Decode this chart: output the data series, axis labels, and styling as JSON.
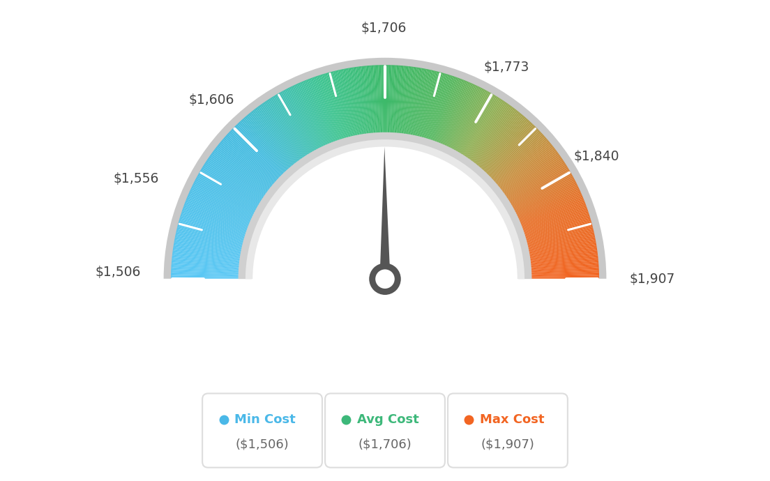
{
  "min_val": 1506,
  "max_val": 1907,
  "avg_val": 1706,
  "tick_labels": [
    "$1,506",
    "$1,556",
    "$1,606",
    "$1,706",
    "$1,773",
    "$1,840",
    "$1,907"
  ],
  "tick_values": [
    1506,
    1556,
    1606,
    1706,
    1773,
    1840,
    1907
  ],
  "legend": [
    {
      "label": "Min Cost",
      "sublabel": "($1,506)",
      "color": "#4ab8e8"
    },
    {
      "label": "Avg Cost",
      "sublabel": "($1,706)",
      "color": "#3db87a"
    },
    {
      "label": "Max Cost",
      "sublabel": "($1,907)",
      "color": "#f26522"
    }
  ],
  "background_color": "#ffffff",
  "needle_color": "#555555",
  "outer_ring_color": "#cccccc",
  "inner_ring_color": "#d8d8d8",
  "n_gradient_segments": 400
}
